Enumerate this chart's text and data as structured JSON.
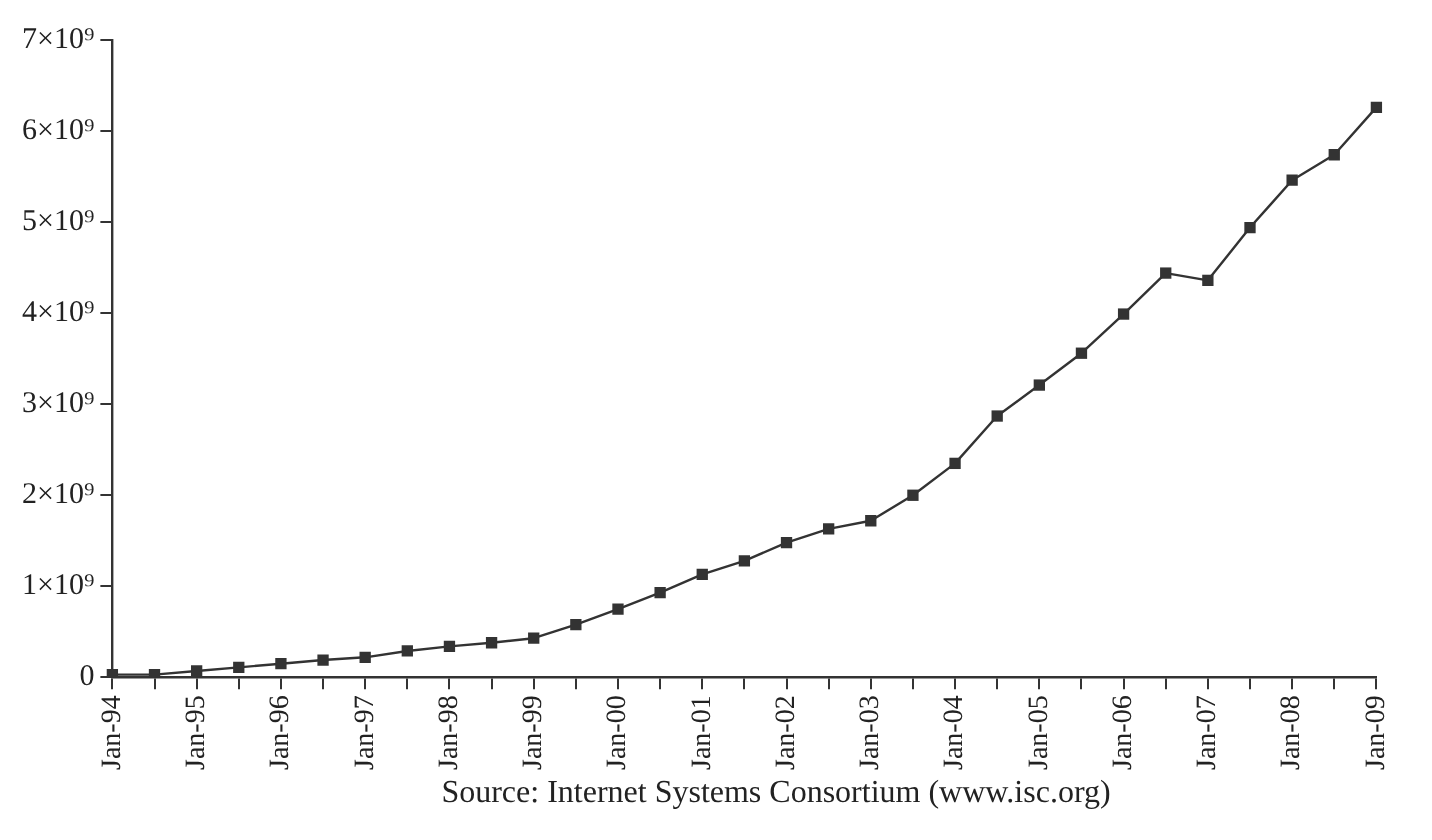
{
  "chart_data": {
    "type": "line",
    "categories": [
      "Jan-94",
      null,
      "Jan-95",
      null,
      "Jan-96",
      null,
      "Jan-97",
      null,
      "Jan-98",
      null,
      "Jan-99",
      null,
      "Jan-00",
      null,
      "Jan-01",
      null,
      "Jan-02",
      null,
      "Jan-03",
      null,
      "Jan-04",
      null,
      "Jan-05",
      null,
      "Jan-06",
      null,
      "Jan-07",
      null,
      "Jan-08",
      null,
      "Jan-09"
    ],
    "series": [
      {
        "color": "#333333",
        "values": [
          30000000,
          30000000,
          70000000,
          110000000,
          150000000,
          190000000,
          220000000,
          290000000,
          340000000,
          380000000,
          430000000,
          580000000,
          750000000,
          930000000,
          1130000000,
          1280000000,
          1480000000,
          1630000000,
          1720000000,
          2000000000,
          2350000000,
          2870000000,
          3210000000,
          3560000000,
          3990000000,
          4440000000,
          4360000000,
          4940000000,
          5460000000,
          5740000000,
          6260000000
        ]
      }
    ],
    "ylim": [
      0,
      7000000000
    ],
    "yticks": [
      0,
      {
        "value": 1000000000,
        "label": "1×10⁹"
      },
      {
        "value": 2000000000,
        "label": "2×10⁹"
      },
      {
        "value": 3000000000,
        "label": "3×10⁹"
      },
      {
        "value": 4000000000,
        "label": "4×10⁹"
      },
      {
        "value": 5000000000,
        "label": "5×10⁹"
      },
      {
        "value": 6000000000,
        "label": "6×10⁹"
      },
      {
        "value": 7000000000,
        "label": "7×10⁹"
      }
    ],
    "grid": false,
    "legend": false,
    "marker": "square",
    "line_style": "solid",
    "annotations": [
      "Source: Internet Systems Consortium (www.isc.org)"
    ]
  }
}
